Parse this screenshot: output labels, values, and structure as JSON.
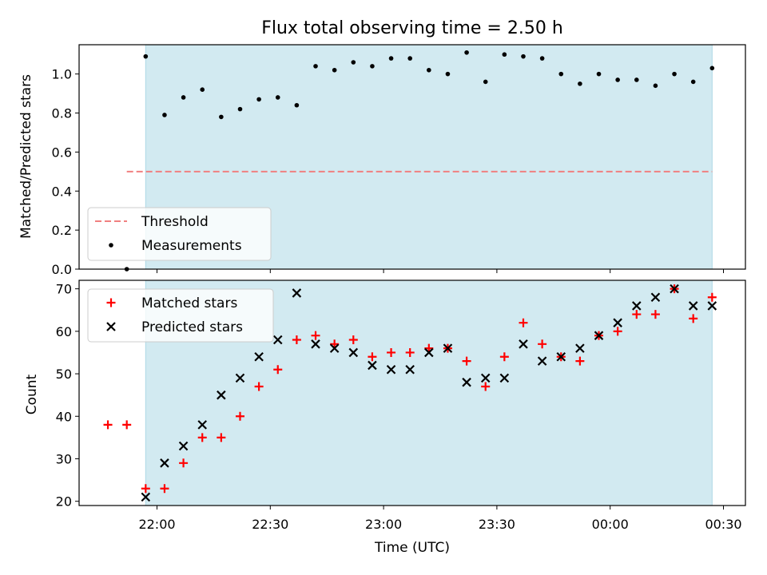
{
  "figure": {
    "title": "Flux total observing time = 2.50 h",
    "xlabel": "Time (UTC)",
    "x_ticks": [
      "22:00",
      "22:30",
      "23:00",
      "23:30",
      "00:00",
      "00:30"
    ],
    "observing_window": {
      "start": "21:57",
      "end": "00:27",
      "color": "#add8e6"
    }
  },
  "chart_data": [
    {
      "type": "scatter",
      "ylabel": "Matched/Predicted stars",
      "ylim": [
        0,
        1.15
      ],
      "y_ticks": [
        "0.0",
        "0.2",
        "0.4",
        "0.6",
        "0.8",
        "1.0"
      ],
      "threshold": {
        "name": "Threshold",
        "value": 0.5,
        "x_range": [
          "21:52",
          "00:27"
        ],
        "color": "#f08080",
        "style": "dashed"
      },
      "legend": {
        "position": "lower-left",
        "entries": [
          "Threshold",
          "Measurements"
        ]
      },
      "series": [
        {
          "name": "Measurements",
          "marker": "dot",
          "color": "#000000",
          "x": [
            "21:52",
            "21:57",
            "22:02",
            "22:07",
            "22:12",
            "22:17",
            "22:22",
            "22:27",
            "22:32",
            "22:37",
            "22:42",
            "22:47",
            "22:52",
            "22:57",
            "23:02",
            "23:07",
            "23:12",
            "23:17",
            "23:22",
            "23:27",
            "23:32",
            "23:37",
            "23:42",
            "23:47",
            "23:52",
            "23:57",
            "00:02",
            "00:07",
            "00:12",
            "00:17",
            "00:22",
            "00:27"
          ],
          "y": [
            0.0,
            1.09,
            0.79,
            0.88,
            0.92,
            0.78,
            0.82,
            0.87,
            0.88,
            0.84,
            1.04,
            1.02,
            1.06,
            1.04,
            1.08,
            1.08,
            1.02,
            1.0,
            1.11,
            0.96,
            1.1,
            1.09,
            1.08,
            1.0,
            0.95,
            1.0,
            0.97,
            0.97,
            0.94,
            1.0,
            0.96,
            1.03
          ]
        }
      ]
    },
    {
      "type": "scatter",
      "ylabel": "Count",
      "ylim": [
        19,
        72
      ],
      "y_ticks": [
        "20",
        "30",
        "40",
        "50",
        "60",
        "70"
      ],
      "legend": {
        "position": "upper-left",
        "entries": [
          "Matched stars",
          "Predicted stars"
        ]
      },
      "series": [
        {
          "name": "Matched stars",
          "marker": "plus",
          "color": "#ff0000",
          "x": [
            "21:47",
            "21:52",
            "21:57",
            "22:02",
            "22:07",
            "22:12",
            "22:17",
            "22:22",
            "22:27",
            "22:32",
            "22:37",
            "22:42",
            "22:47",
            "22:52",
            "22:57",
            "23:02",
            "23:07",
            "23:12",
            "23:17",
            "23:22",
            "23:27",
            "23:32",
            "23:37",
            "23:42",
            "23:47",
            "23:52",
            "23:57",
            "00:02",
            "00:07",
            "00:12",
            "00:17",
            "00:22",
            "00:27"
          ],
          "y": [
            38,
            38,
            23,
            23,
            29,
            35,
            35,
            40,
            47,
            51,
            58,
            59,
            57,
            58,
            54,
            55,
            55,
            56,
            56,
            53,
            47,
            54,
            62,
            57,
            54,
            53,
            59,
            60,
            64,
            64,
            70,
            63,
            68
          ]
        },
        {
          "name": "Predicted stars",
          "marker": "x",
          "color": "#000000",
          "x": [
            "21:57",
            "22:02",
            "22:07",
            "22:12",
            "22:17",
            "22:22",
            "22:27",
            "22:32",
            "22:37",
            "22:42",
            "22:47",
            "22:52",
            "22:57",
            "23:02",
            "23:07",
            "23:12",
            "23:17",
            "23:22",
            "23:27",
            "23:32",
            "23:37",
            "23:42",
            "23:47",
            "23:52",
            "23:57",
            "00:02",
            "00:07",
            "00:12",
            "00:17",
            "00:22",
            "00:27"
          ],
          "y": [
            21,
            29,
            33,
            38,
            45,
            49,
            54,
            58,
            69,
            57,
            56,
            55,
            52,
            51,
            51,
            55,
            56,
            48,
            49,
            49,
            57,
            53,
            54,
            56,
            59,
            62,
            66,
            68,
            70,
            66,
            66
          ]
        }
      ]
    }
  ]
}
